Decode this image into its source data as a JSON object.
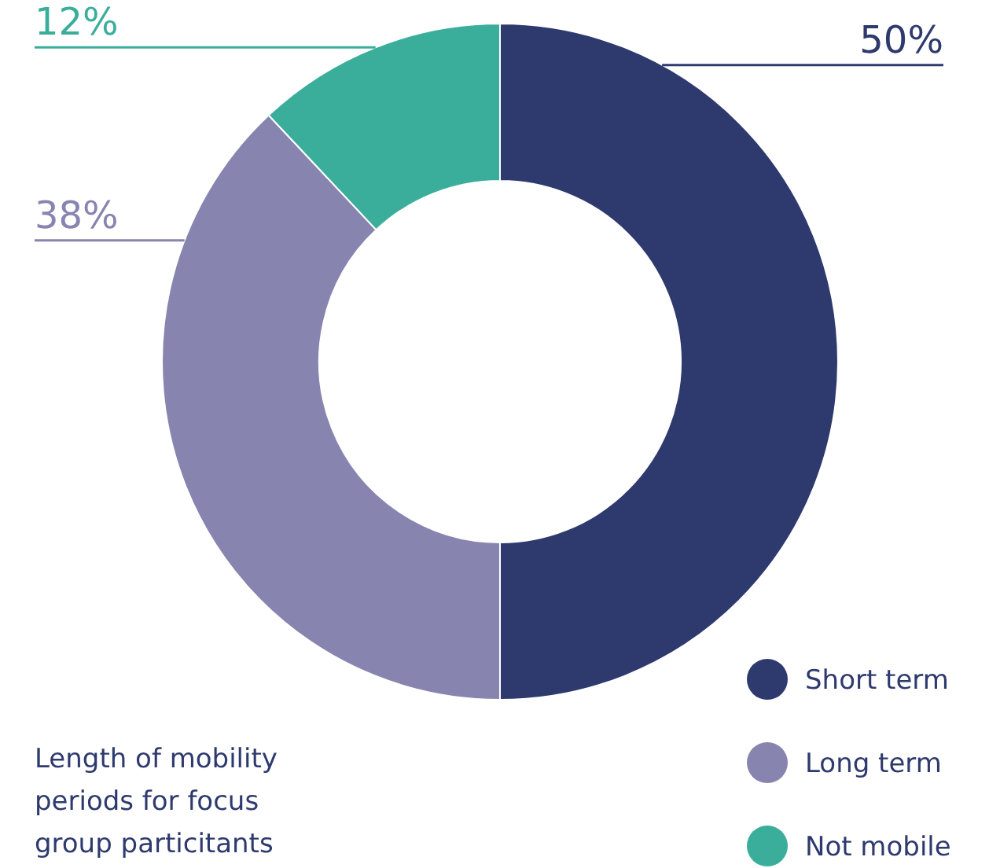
{
  "chart_data": {
    "type": "donut",
    "title": "Length of mobility periods for focus group particitants",
    "categories": [
      "Short term",
      "Long term",
      "Not mobile"
    ],
    "values": [
      50,
      38,
      12
    ],
    "colors": [
      "#2e3a6e",
      "#8784b0",
      "#3aae9a"
    ],
    "value_labels": [
      "50%",
      "38%",
      "12%"
    ],
    "legend": "bottom right"
  }
}
